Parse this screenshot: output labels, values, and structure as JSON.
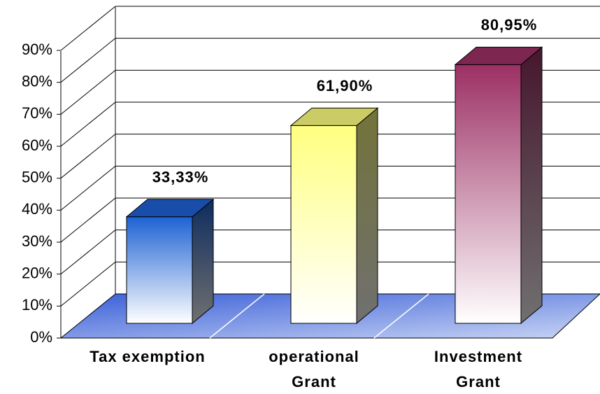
{
  "chart_data": {
    "type": "bar3d",
    "categories": [
      "Tax exemption",
      "operational Grant",
      "Investment Grant"
    ],
    "values": [
      33.33,
      61.9,
      80.95
    ],
    "value_labels": [
      "33,33%",
      "61,90%",
      "80,95%"
    ],
    "colors": [
      "#1e62d4",
      "#ffff80",
      "#9c3064"
    ],
    "ylim": [
      0,
      90
    ],
    "yticks": [
      {
        "value": 0,
        "label": "0%"
      },
      {
        "value": 10,
        "label": "10%"
      },
      {
        "value": 20,
        "label": "20%"
      },
      {
        "value": 30,
        "label": "30%"
      },
      {
        "value": 40,
        "label": "40%"
      },
      {
        "value": 50,
        "label": "50%"
      },
      {
        "value": 60,
        "label": "60%"
      },
      {
        "value": 70,
        "label": "70%"
      },
      {
        "value": 80,
        "label": "80%"
      },
      {
        "value": 90,
        "label": "90%"
      }
    ],
    "grid": true
  }
}
